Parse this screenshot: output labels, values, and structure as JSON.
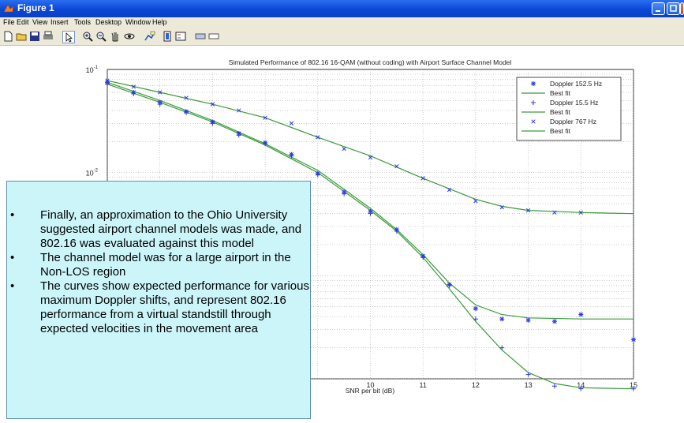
{
  "window": {
    "title": "Figure 1",
    "controls": [
      "minimize",
      "maximize",
      "close"
    ]
  },
  "menu": [
    "File",
    "Edit",
    "View",
    "Insert",
    "Tools",
    "Desktop",
    "Window",
    "Help"
  ],
  "toolbar_icons": [
    "new-file-icon",
    "open-folder-icon",
    "save-icon",
    "print-icon",
    "pointer-icon",
    "zoom-in-icon",
    "zoom-out-icon",
    "pan-icon",
    "rotate-icon",
    "data-cursor-icon",
    "colorbar-icon",
    "legend-icon",
    "hide-plot-tools-icon",
    "show-plot-tools-icon"
  ],
  "chart_data": {
    "type": "line",
    "title": "Simulated Performance of 802.16 16-QAM (without coding) with Airport Surface Channel Model",
    "xlabel": "SNR per bit (dB)",
    "ylabel": "",
    "yscale": "log",
    "xlim": [
      5,
      15
    ],
    "ylim": [
      0.0001,
      0.1
    ],
    "xticks": [
      10,
      11,
      12,
      13,
      14,
      15
    ],
    "yticks": [
      "10^-1",
      "10^-2"
    ],
    "grid": true,
    "legend_position": "top-right",
    "legend": [
      "Doppler 152.5 Hz",
      "Best fit",
      "Doppler 15.5 Hz",
      "Best fit",
      "Doppler 767 Hz",
      "Best fit"
    ],
    "series": [
      {
        "name": "Doppler 152.5 Hz",
        "marker": "*",
        "x": [
          5,
          5.5,
          6,
          6.5,
          7,
          7.5,
          8,
          8.5,
          9,
          9.5,
          10,
          10.5,
          11,
          11.5,
          12,
          12.5,
          13,
          13.5,
          14,
          15
        ],
        "y": [
          0.075,
          0.06,
          0.048,
          0.039,
          0.031,
          0.024,
          0.0195,
          0.015,
          0.0098,
          0.0065,
          0.0042,
          0.0028,
          0.00155,
          0.00082,
          0.00048,
          0.00038,
          0.00037,
          0.00036,
          0.00042,
          0.00024
        ]
      },
      {
        "name": "Best fit",
        "marker": "none",
        "x": [
          5,
          6,
          7,
          8,
          9,
          10,
          10.5,
          11,
          11.5,
          12,
          12.5,
          13,
          14,
          15
        ],
        "y": [
          0.075,
          0.05,
          0.032,
          0.019,
          0.0105,
          0.0045,
          0.0028,
          0.0016,
          0.00085,
          0.00052,
          0.00042,
          0.00039,
          0.00038,
          0.00038
        ]
      },
      {
        "name": "Doppler 15.5 Hz",
        "marker": "+",
        "x": [
          5,
          5.5,
          6,
          6.5,
          7,
          7.5,
          8,
          8.5,
          9,
          9.5,
          10,
          10.5,
          11,
          11.5,
          12,
          12.5,
          13,
          13.5,
          14,
          15
        ],
        "y": [
          0.072,
          0.058,
          0.046,
          0.038,
          0.03,
          0.023,
          0.019,
          0.0145,
          0.0095,
          0.0062,
          0.004,
          0.0027,
          0.0015,
          0.0008,
          0.00038,
          0.0002,
          0.00011,
          8.5e-05,
          8e-05,
          8e-05
        ]
      },
      {
        "name": "Best fit",
        "marker": "none",
        "x": [
          5,
          6,
          7,
          8,
          9,
          10,
          10.5,
          11,
          11.5,
          12,
          12.5,
          13,
          13.5,
          14,
          15
        ],
        "y": [
          0.072,
          0.048,
          0.031,
          0.0185,
          0.01,
          0.0043,
          0.0027,
          0.0015,
          0.00075,
          0.00036,
          0.00019,
          0.000115,
          9e-05,
          8.2e-05,
          8e-05
        ]
      },
      {
        "name": "Doppler 767 Hz",
        "marker": "x",
        "x": [
          5,
          5.5,
          6,
          6.5,
          7,
          7.5,
          8,
          8.5,
          9,
          9.5,
          10,
          10.5,
          11,
          11.5,
          12,
          12.5,
          13,
          13.5,
          14
        ],
        "y": [
          0.078,
          0.068,
          0.06,
          0.053,
          0.046,
          0.04,
          0.034,
          0.03,
          0.022,
          0.017,
          0.014,
          0.0115,
          0.0088,
          0.0068,
          0.0053,
          0.0046,
          0.0043,
          0.0041,
          0.0041
        ]
      },
      {
        "name": "Best fit",
        "marker": "none",
        "x": [
          5,
          6,
          7,
          8,
          9,
          10,
          11,
          12,
          12.5,
          13,
          14,
          15
        ],
        "y": [
          0.078,
          0.06,
          0.046,
          0.034,
          0.022,
          0.0145,
          0.0088,
          0.0055,
          0.0047,
          0.0043,
          0.0041,
          0.004
        ]
      }
    ]
  },
  "callout": {
    "bullets": [
      "Finally, an approximation to the Ohio University suggested airport channel models was made, and 802.16 was evaluated against this model",
      "The channel model was for a large airport in the Non-LOS region",
      "The curves show expected performance for various maximum Doppler shifts, and represent 802.16 performance from a virtual standstill through expected velocities in the movement area"
    ]
  },
  "colors": {
    "titlebar": "#0a46d6",
    "chrome": "#ece9d8",
    "callout_bg": "#ccf5fa",
    "fit_line": "#3a9a3a",
    "marker": "#2a3ae0"
  }
}
